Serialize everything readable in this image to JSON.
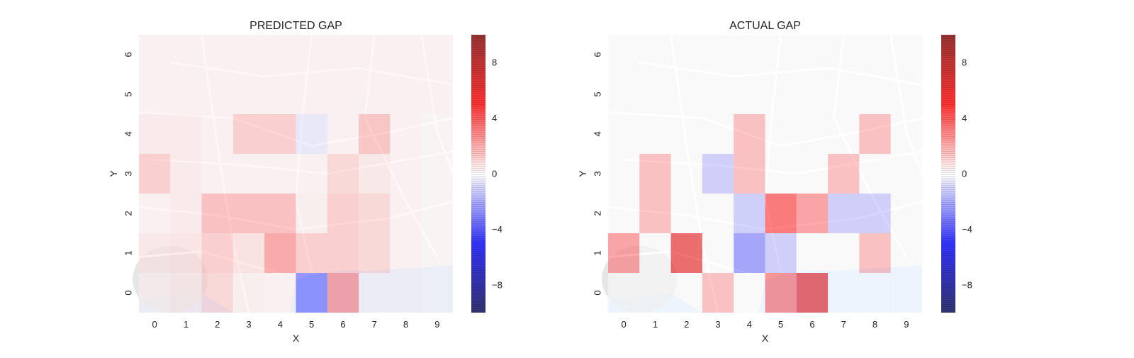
{
  "chart_data": [
    {
      "type": "heatmap",
      "title": "PREDICTED GAP",
      "xlabel": "X",
      "ylabel": "Y",
      "x": [
        0,
        1,
        2,
        3,
        4,
        5,
        6,
        7,
        8,
        9
      ],
      "y": [
        0,
        1,
        2,
        3,
        4,
        5,
        6
      ],
      "grid": false,
      "colorscale": "seismic",
      "background": "street-map",
      "vrange": [
        -10,
        10
      ],
      "colorbar_ticks": [
        8,
        4,
        0,
        -4,
        -8
      ],
      "values": [
        [
          0.3,
          0.5,
          1.2,
          0.4,
          0.3,
          -3.5,
          3.0,
          0.3,
          0.3,
          0.2
        ],
        [
          0.6,
          0.7,
          1.5,
          0.8,
          2.8,
          1.5,
          1.5,
          1.2,
          0.3,
          0.2
        ],
        [
          0.3,
          0.5,
          2.0,
          2.0,
          2.0,
          0.4,
          1.5,
          1.2,
          0.3,
          0.2
        ],
        [
          1.5,
          0.5,
          0.3,
          0.3,
          0.3,
          0.3,
          1.2,
          0.6,
          0.3,
          0.2
        ],
        [
          0.5,
          0.5,
          0.3,
          1.5,
          1.5,
          -0.6,
          0.3,
          1.8,
          0.3,
          0.2
        ],
        [
          0.3,
          0.3,
          0.3,
          0.3,
          0.3,
          0.3,
          0.3,
          0.3,
          0.3,
          0.3
        ],
        [
          0.3,
          0.3,
          0.3,
          0.3,
          0.3,
          0.3,
          0.3,
          0.3,
          0.3,
          0.3
        ]
      ]
    },
    {
      "type": "heatmap",
      "title": "ACTUAL GAP",
      "xlabel": "X",
      "ylabel": "Y",
      "x": [
        0,
        1,
        2,
        3,
        4,
        5,
        6,
        7,
        8,
        9
      ],
      "y": [
        0,
        1,
        2,
        3,
        4,
        5,
        6
      ],
      "grid": false,
      "colorscale": "seismic",
      "background": "street-map",
      "vrange": [
        -10,
        10
      ],
      "colorbar_ticks": [
        8,
        4,
        0,
        -4,
        -8
      ],
      "values": [
        [
          0,
          0,
          0,
          2.0,
          0,
          3.5,
          6.0,
          0,
          0,
          0
        ],
        [
          3.0,
          0,
          6.0,
          0,
          -3.0,
          -1.5,
          0,
          0,
          2.0,
          0
        ],
        [
          0,
          2.0,
          0,
          0,
          -1.5,
          4.5,
          3.0,
          -1.5,
          -1.5,
          0
        ],
        [
          0,
          2.0,
          0,
          -1.5,
          2.0,
          0,
          0,
          2.0,
          0,
          0
        ],
        [
          0,
          0,
          0,
          0,
          2.0,
          0,
          0,
          0,
          2.0,
          0
        ],
        [
          0,
          0,
          0,
          0,
          0,
          0,
          0,
          0,
          0,
          0
        ],
        [
          0,
          0,
          0,
          0,
          0,
          0,
          0,
          0,
          0,
          0
        ]
      ]
    }
  ]
}
